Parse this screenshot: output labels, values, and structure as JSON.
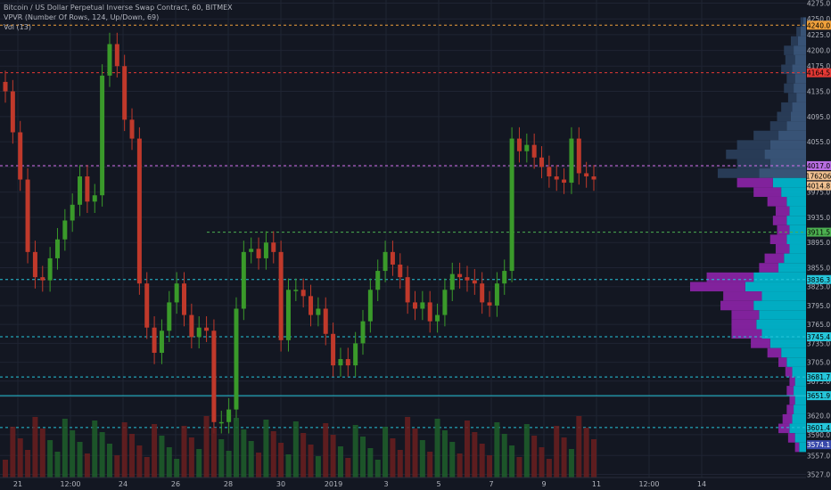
{
  "header": {
    "title": "Bitcoin / US Dollar Perpetual Inverse Swap Contract, 60, BITMEX",
    "vpvr": "VPVR (Number Of Rows, 124, Up/Down, 69)",
    "vol": "Vol (13)"
  },
  "colors": {
    "background": "#131722",
    "grid": "#1f2433",
    "up": "#26a69a",
    "candle_up": "#3a9a2a",
    "candle_down": "#c0392b",
    "vp_up": "#00bcd4",
    "vp_down": "#8e24aa",
    "vp_history": "#3d5a80",
    "axis_text": "#b2b5be"
  },
  "chart_data": {
    "type": "candlestick",
    "ylim": [
      3522,
      4280
    ],
    "y_ticks": [
      4275,
      4250,
      4225,
      4200,
      4175,
      4135,
      4095,
      4055,
      4015,
      3975,
      3935,
      3895,
      3855,
      3825,
      3795,
      3765,
      3735,
      3705,
      3675,
      3650,
      3620,
      3590,
      3557,
      3527
    ],
    "x_ticks": [
      "21",
      "12:00",
      "24",
      "26",
      "28",
      "30",
      "2019",
      "3",
      "5",
      "7",
      "9",
      "11",
      "12:00",
      "14"
    ],
    "series": [
      {
        "name": "price",
        "points": [
          {
            "t": 0,
            "c": 4135
          },
          {
            "t": 0.25,
            "c": 4070
          },
          {
            "t": 0.5,
            "c": 3995
          },
          {
            "t": 0.75,
            "c": 3880
          },
          {
            "t": 1,
            "c": 3840
          },
          {
            "t": 1.25,
            "c": 3835
          },
          {
            "t": 1.5,
            "c": 3870
          },
          {
            "t": 1.75,
            "c": 3900
          },
          {
            "t": 2,
            "c": 3930
          },
          {
            "t": 2.25,
            "c": 3955
          },
          {
            "t": 2.5,
            "c": 4000
          },
          {
            "t": 2.75,
            "c": 3960
          },
          {
            "t": 3,
            "c": 3970
          },
          {
            "t": 3.25,
            "c": 4160
          },
          {
            "t": 3.5,
            "c": 4210
          },
          {
            "t": 3.75,
            "c": 4175
          },
          {
            "t": 4,
            "c": 4090
          },
          {
            "t": 4.25,
            "c": 4060
          },
          {
            "t": 4.5,
            "c": 3830
          },
          {
            "t": 4.75,
            "c": 3760
          },
          {
            "t": 5,
            "c": 3720
          },
          {
            "t": 5.25,
            "c": 3755
          },
          {
            "t": 5.5,
            "c": 3800
          },
          {
            "t": 5.75,
            "c": 3830
          },
          {
            "t": 6,
            "c": 3780
          },
          {
            "t": 6.25,
            "c": 3745
          },
          {
            "t": 6.5,
            "c": 3760
          },
          {
            "t": 6.75,
            "c": 3755
          },
          {
            "t": 7,
            "c": 3610
          },
          {
            "t": 7.25,
            "c": 3610
          },
          {
            "t": 7.5,
            "c": 3630
          },
          {
            "t": 7.75,
            "c": 3790
          },
          {
            "t": 8,
            "c": 3880
          },
          {
            "t": 8.25,
            "c": 3885
          },
          {
            "t": 8.5,
            "c": 3870
          },
          {
            "t": 8.75,
            "c": 3895
          },
          {
            "t": 9,
            "c": 3880
          },
          {
            "t": 9.25,
            "c": 3740
          },
          {
            "t": 9.5,
            "c": 3820
          },
          {
            "t": 9.75,
            "c": 3820
          },
          {
            "t": 10,
            "c": 3810
          },
          {
            "t": 10.25,
            "c": 3780
          },
          {
            "t": 10.5,
            "c": 3790
          },
          {
            "t": 10.75,
            "c": 3750
          },
          {
            "t": 11,
            "c": 3700
          },
          {
            "t": 11.25,
            "c": 3710
          },
          {
            "t": 11.5,
            "c": 3700
          },
          {
            "t": 11.75,
            "c": 3735
          },
          {
            "t": 12,
            "c": 3770
          },
          {
            "t": 12.25,
            "c": 3820
          },
          {
            "t": 12.5,
            "c": 3850
          },
          {
            "t": 12.75,
            "c": 3880
          },
          {
            "t": 13,
            "c": 3860
          },
          {
            "t": 13.25,
            "c": 3840
          },
          {
            "t": 13.5,
            "c": 3800
          },
          {
            "t": 13.75,
            "c": 3790
          },
          {
            "t": 14,
            "c": 3800
          },
          {
            "t": 14.25,
            "c": 3770
          },
          {
            "t": 14.5,
            "c": 3780
          },
          {
            "t": 14.75,
            "c": 3820
          },
          {
            "t": 15,
            "c": 3845
          },
          {
            "t": 15.25,
            "c": 3840
          },
          {
            "t": 15.5,
            "c": 3835
          },
          {
            "t": 15.75,
            "c": 3830
          },
          {
            "t": 16,
            "c": 3800
          },
          {
            "t": 16.25,
            "c": 3795
          },
          {
            "t": 16.5,
            "c": 3830
          },
          {
            "t": 16.75,
            "c": 3850
          },
          {
            "t": 17,
            "c": 4060
          },
          {
            "t": 17.25,
            "c": 4040
          },
          {
            "t": 17.5,
            "c": 4050
          },
          {
            "t": 17.75,
            "c": 4030
          },
          {
            "t": 18,
            "c": 4015
          },
          {
            "t": 18.25,
            "c": 4000
          },
          {
            "t": 18.5,
            "c": 3995
          },
          {
            "t": 18.75,
            "c": 3990
          },
          {
            "t": 19,
            "c": 4060
          },
          {
            "t": 19.25,
            "c": 4005
          },
          {
            "t": 19.5,
            "c": 4000
          },
          {
            "t": 19.75,
            "c": 3995
          }
        ]
      }
    ],
    "volume_profile": {
      "rows": [
        {
          "p": 4245,
          "u": 2,
          "d": 2
        },
        {
          "p": 4230,
          "u": 4,
          "d": 3
        },
        {
          "p": 4215,
          "u": 6,
          "d": 5
        },
        {
          "p": 4200,
          "u": 9,
          "d": 7
        },
        {
          "p": 4185,
          "u": 8,
          "d": 7
        },
        {
          "p": 4170,
          "u": 10,
          "d": 8
        },
        {
          "p": 4155,
          "u": 8,
          "d": 6
        },
        {
          "p": 4140,
          "u": 9,
          "d": 7
        },
        {
          "p": 4125,
          "u": 7,
          "d": 6
        },
        {
          "p": 4110,
          "u": 10,
          "d": 8
        },
        {
          "p": 4095,
          "u": 11,
          "d": 10
        },
        {
          "p": 4080,
          "u": 14,
          "d": 12
        },
        {
          "p": 4065,
          "u": 20,
          "d": 18
        },
        {
          "p": 4050,
          "u": 26,
          "d": 24
        },
        {
          "p": 4035,
          "u": 30,
          "d": 28
        },
        {
          "p": 4020,
          "u": 26,
          "d": 24
        },
        {
          "p": 4005,
          "u": 34,
          "d": 30
        },
        {
          "p": 3990,
          "u": 24,
          "d": 26
        },
        {
          "p": 3975,
          "u": 18,
          "d": 20
        },
        {
          "p": 3960,
          "u": 14,
          "d": 14
        },
        {
          "p": 3945,
          "u": 12,
          "d": 10
        },
        {
          "p": 3930,
          "u": 14,
          "d": 10
        },
        {
          "p": 3915,
          "u": 12,
          "d": 9
        },
        {
          "p": 3900,
          "u": 14,
          "d": 12
        },
        {
          "p": 3885,
          "u": 12,
          "d": 10
        },
        {
          "p": 3870,
          "u": 16,
          "d": 14
        },
        {
          "p": 3855,
          "u": 20,
          "d": 14
        },
        {
          "p": 3840,
          "u": 38,
          "d": 34
        },
        {
          "p": 3825,
          "u": 44,
          "d": 40
        },
        {
          "p": 3810,
          "u": 32,
          "d": 28
        },
        {
          "p": 3795,
          "u": 38,
          "d": 24
        },
        {
          "p": 3780,
          "u": 34,
          "d": 20
        },
        {
          "p": 3765,
          "u": 36,
          "d": 18
        },
        {
          "p": 3750,
          "u": 32,
          "d": 22
        },
        {
          "p": 3735,
          "u": 26,
          "d": 14
        },
        {
          "p": 3720,
          "u": 18,
          "d": 10
        },
        {
          "p": 3705,
          "u": 14,
          "d": 6
        },
        {
          "p": 3690,
          "u": 10,
          "d": 5
        },
        {
          "p": 3675,
          "u": 8,
          "d": 4
        },
        {
          "p": 3660,
          "u": 9,
          "d": 5
        },
        {
          "p": 3645,
          "u": 8,
          "d": 4
        },
        {
          "p": 3630,
          "u": 9,
          "d": 5
        },
        {
          "p": 3615,
          "u": 10,
          "d": 7
        },
        {
          "p": 3600,
          "u": 12,
          "d": 8
        },
        {
          "p": 3585,
          "u": 8,
          "d": 5
        },
        {
          "p": 3570,
          "u": 5,
          "d": 3
        }
      ]
    },
    "levels": [
      {
        "value": 4240.0,
        "color": "#f0a13b",
        "style": "dashed",
        "label": "4240.0"
      },
      {
        "value": 4164.5,
        "color": "#e53935",
        "style": "dashed",
        "label": "4164.5"
      },
      {
        "value": 4017.0,
        "color": "#d670f0",
        "style": "dashed",
        "label": "4017.0"
      },
      {
        "value": 3911.5,
        "color": "#4caf50",
        "style": "dashed",
        "label": "3911.5"
      },
      {
        "value": 3836.3,
        "color": "#26c6da",
        "style": "dashed",
        "label": "3836.3"
      },
      {
        "value": 3745.4,
        "color": "#26c6da",
        "style": "dashed",
        "label": "3745.4"
      },
      {
        "value": 3681.7,
        "color": "#26c6da",
        "style": "dashed",
        "label": "3681.7"
      },
      {
        "value": 3651.9,
        "color": "#26c6da",
        "style": "solid",
        "label": "3651.9"
      },
      {
        "value": 3601.4,
        "color": "#26c6da",
        "style": "dashed",
        "label": "3601.4"
      }
    ],
    "axis_labels": [
      {
        "value": 4017.0,
        "label": "4017.0",
        "bg": "#b76de0"
      },
      {
        "value": 4001.0,
        "label": "176206",
        "bg": "#f0c090"
      },
      {
        "value": 3985.0,
        "label": "4014.8",
        "bg": "#f0c090"
      },
      {
        "value": 3574.1,
        "label": "3574.1",
        "bg": "#3949ab"
      }
    ]
  }
}
